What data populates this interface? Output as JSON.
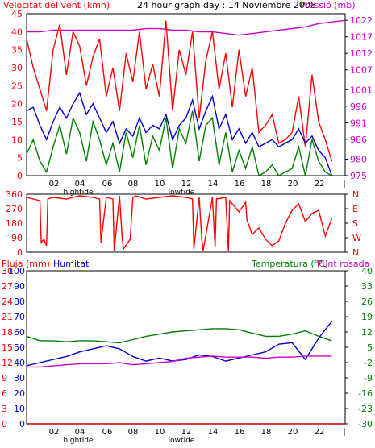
{
  "colors": {
    "frame": "#000000",
    "wind_avg": "#008000",
    "wind_gust": "#ff0000",
    "wind_mean": "#0000cc",
    "pressure": "#cc00cc",
    "direction": "#ff0000",
    "humidity": "#0000cc",
    "temperature": "#008000",
    "dewpoint": "#cc00cc",
    "rain": "#cc0000"
  },
  "chart_data": [
    {
      "type": "line",
      "title": "24 hour graph day : 14 Noviembre 2008",
      "ylabel_left": "Velocitat del vent (kmh)",
      "ylabel_right": "Pressió (mb)",
      "x_ticks": [
        "02",
        "04",
        "06",
        "08",
        "10",
        "12",
        "14",
        "16",
        "18",
        "20",
        "22",
        "|"
      ],
      "x_annotations": [
        "hightide",
        "lowtide"
      ],
      "y_ticks_left": [
        0,
        5,
        10,
        15,
        20,
        25,
        30,
        35,
        40,
        45
      ],
      "y_ticks_right": [
        975,
        980,
        986,
        991,
        996,
        1001,
        1007,
        1012,
        1017,
        1022
      ],
      "ylim_left": [
        0,
        45
      ],
      "ylim_right": [
        975,
        1024
      ],
      "xlim": [
        0,
        24
      ],
      "series": [
        {
          "axis": "right",
          "color_key": "pressure",
          "x": [
            0,
            1,
            2,
            3,
            4,
            5,
            6,
            7,
            8,
            9,
            10,
            11,
            12,
            13,
            14,
            15,
            16,
            17,
            18,
            19,
            20,
            21,
            22,
            23,
            24
          ],
          "y": [
            1018.5,
            1018.5,
            1019,
            1019,
            1019,
            1019,
            1019,
            1019,
            1019,
            1019.5,
            1019.5,
            1019,
            1019,
            1018.5,
            1018.5,
            1018,
            1017.5,
            1018,
            1018.5,
            1019,
            1019.5,
            1020,
            1021,
            1021.5,
            1022
          ]
        },
        {
          "axis": "left",
          "color_key": "wind_gust",
          "x": [
            0,
            0.5,
            1,
            1.5,
            2,
            2.5,
            3,
            3.5,
            4,
            4.5,
            5,
            5.5,
            6,
            6.5,
            7,
            7.5,
            8,
            8.5,
            9,
            9.5,
            10,
            10.5,
            11,
            11.5,
            12,
            12.5,
            13,
            13.5,
            14,
            14.5,
            15,
            15.5,
            16,
            16.5,
            17,
            17.5,
            18,
            18.5,
            19,
            19.5,
            20,
            20.5,
            21,
            21.5,
            22,
            22.5,
            23
          ],
          "y": [
            38,
            30,
            24,
            18,
            35,
            42,
            28,
            40,
            36,
            25,
            33,
            38,
            22,
            30,
            18,
            34,
            26,
            40,
            24,
            31,
            22,
            43,
            18,
            35,
            28,
            40,
            16,
            32,
            40,
            24,
            34,
            19,
            35,
            22,
            30,
            12,
            14,
            17,
            9,
            10,
            12,
            22,
            8,
            28,
            15,
            10,
            4
          ]
        },
        {
          "axis": "left",
          "color_key": "wind_mean",
          "x": [
            0,
            0.5,
            1,
            1.5,
            2,
            2.5,
            3,
            3.5,
            4,
            4.5,
            5,
            5.5,
            6,
            6.5,
            7,
            7.5,
            8,
            8.5,
            9,
            9.5,
            10,
            10.5,
            11,
            11.5,
            12,
            12.5,
            13,
            13.5,
            14,
            14.5,
            15,
            15.5,
            16,
            16.5,
            17,
            17.5,
            18,
            18.5,
            19,
            19.5,
            20,
            20.5,
            21,
            21.5,
            22,
            22.5,
            23
          ],
          "y": [
            18,
            19,
            14,
            10,
            15,
            19,
            16,
            20,
            23,
            17,
            20,
            16,
            12,
            15,
            9,
            13,
            11,
            16,
            12,
            14,
            13,
            17,
            10,
            14,
            16,
            21,
            13,
            18,
            22,
            13,
            17,
            10,
            13,
            9,
            12,
            8,
            9,
            10,
            8,
            9,
            10,
            13,
            9,
            11,
            7,
            5,
            0
          ]
        },
        {
          "axis": "left",
          "color_key": "wind_avg",
          "x": [
            0,
            0.5,
            1,
            1.5,
            2,
            2.5,
            3,
            3.5,
            4,
            4.5,
            5,
            5.5,
            6,
            6.5,
            7,
            7.5,
            8,
            8.5,
            9,
            9.5,
            10,
            10.5,
            11,
            11.5,
            12,
            12.5,
            13,
            13.5,
            14,
            14.5,
            15,
            15.5,
            16,
            16.5,
            17,
            17.5,
            18,
            18.5,
            19,
            19.5,
            20,
            20.5,
            21,
            21.5,
            22,
            22.5,
            23
          ],
          "y": [
            6,
            10,
            4,
            1,
            8,
            14,
            6,
            16,
            12,
            4,
            15,
            10,
            3,
            9,
            1,
            12,
            5,
            14,
            3,
            11,
            7,
            16,
            2,
            13,
            9,
            18,
            4,
            14,
            16,
            3,
            12,
            1,
            7,
            2,
            8,
            0,
            1,
            3,
            0,
            1,
            2,
            8,
            0,
            10,
            4,
            1,
            0
          ]
        }
      ]
    },
    {
      "type": "line",
      "title": "",
      "x_ticks": [],
      "y_ticks_left": [
        0,
        90,
        180,
        270,
        360
      ],
      "y_labels_right": [
        "N",
        "W",
        "S",
        "E",
        "N"
      ],
      "ylim": [
        0,
        360
      ],
      "xlim": [
        0,
        24
      ],
      "series": [
        {
          "color_key": "direction",
          "x": [
            0,
            0.5,
            1,
            1.1,
            1.3,
            1.5,
            1.6,
            2,
            3,
            4,
            5,
            5.5,
            5.6,
            6,
            6.5,
            6.6,
            7,
            7.2,
            7.3,
            7.8,
            8,
            8.2,
            9,
            10,
            11,
            12,
            12.5,
            12.6,
            13,
            13.2,
            13.3,
            14,
            14.2,
            14.3,
            15,
            15.2,
            15.3,
            16,
            16.5,
            16.6,
            17,
            17.5,
            18,
            18.5,
            19,
            19.5,
            20,
            20.5,
            21,
            21.5,
            22,
            22.5,
            23
          ],
          "y": [
            340,
            330,
            320,
            60,
            80,
            40,
            330,
            340,
            330,
            350,
            340,
            330,
            60,
            340,
            330,
            10,
            350,
            90,
            20,
            80,
            340,
            350,
            330,
            340,
            350,
            340,
            330,
            20,
            340,
            80,
            10,
            340,
            30,
            330,
            340,
            10,
            320,
            250,
            310,
            200,
            110,
            150,
            80,
            40,
            70,
            180,
            260,
            300,
            190,
            240,
            260,
            100,
            210
          ]
        }
      ]
    },
    {
      "type": "line",
      "title": "",
      "ylabel_left": "Pluja (mm)",
      "ylabel_left2": "Humitat",
      "ylabel_right": "Temperatura (°C)",
      "ylabel_right2": "Punt rosada",
      "x_ticks": [
        "02",
        "04",
        "06",
        "08",
        "10",
        "12",
        "14",
        "16",
        "18",
        "20",
        "22",
        "|"
      ],
      "x_annotations": [
        "hightide",
        "lowtide"
      ],
      "y_ticks_humidity": [
        0,
        10,
        20,
        30,
        40,
        50,
        60,
        70,
        80,
        90,
        100
      ],
      "y_ticks_rain": [
        0,
        3,
        6,
        9,
        12,
        15,
        18,
        21,
        24,
        27,
        30
      ],
      "y_ticks_temp": [
        -30,
        -23,
        -16,
        -9,
        -2,
        5,
        12,
        19,
        26,
        33,
        40
      ],
      "ylim_humidity": [
        0,
        100
      ],
      "ylim_temp": [
        -30,
        40
      ],
      "xlim": [
        0,
        24
      ],
      "series": [
        {
          "axis": "temp",
          "color_key": "temperature",
          "x": [
            0,
            1,
            2,
            3,
            4,
            5,
            6,
            7,
            8,
            9,
            10,
            11,
            12,
            13,
            14,
            15,
            16,
            17,
            18,
            19,
            20,
            21,
            22,
            23
          ],
          "y": [
            10,
            8,
            8,
            7.5,
            8,
            8,
            7.5,
            7,
            8.5,
            10,
            11,
            12,
            12.5,
            13,
            13.5,
            13.5,
            13,
            11.5,
            10,
            10,
            11,
            12.5,
            10,
            8
          ]
        },
        {
          "axis": "humidity",
          "color_key": "humidity",
          "x": [
            0,
            1,
            2,
            3,
            4,
            5,
            6,
            7,
            8,
            9,
            10,
            11,
            12,
            13,
            14,
            15,
            16,
            17,
            18,
            19,
            20,
            21,
            22,
            23
          ],
          "y": [
            38,
            40,
            42,
            44,
            47,
            49,
            51,
            49,
            44,
            41,
            43,
            41,
            42,
            45,
            44,
            41,
            43,
            45,
            47,
            52,
            53,
            42,
            56,
            67
          ]
        },
        {
          "axis": "temp",
          "color_key": "dewpoint",
          "x": [
            0,
            1,
            2,
            3,
            4,
            5,
            6,
            7,
            8,
            9,
            10,
            11,
            12,
            13,
            14,
            15,
            16,
            17,
            18,
            19,
            20,
            21,
            22,
            23
          ],
          "y": [
            -4,
            -4,
            -3.5,
            -3,
            -2.5,
            -2.5,
            -2.5,
            -2,
            -3,
            -2.5,
            -2,
            -1.5,
            0,
            0.5,
            1,
            0.5,
            0.5,
            0.5,
            0,
            0.5,
            0.5,
            1,
            1,
            1
          ]
        },
        {
          "axis": "rain",
          "color_key": "rain",
          "x": [
            0,
            24
          ],
          "y": [
            0,
            0
          ]
        }
      ]
    }
  ]
}
